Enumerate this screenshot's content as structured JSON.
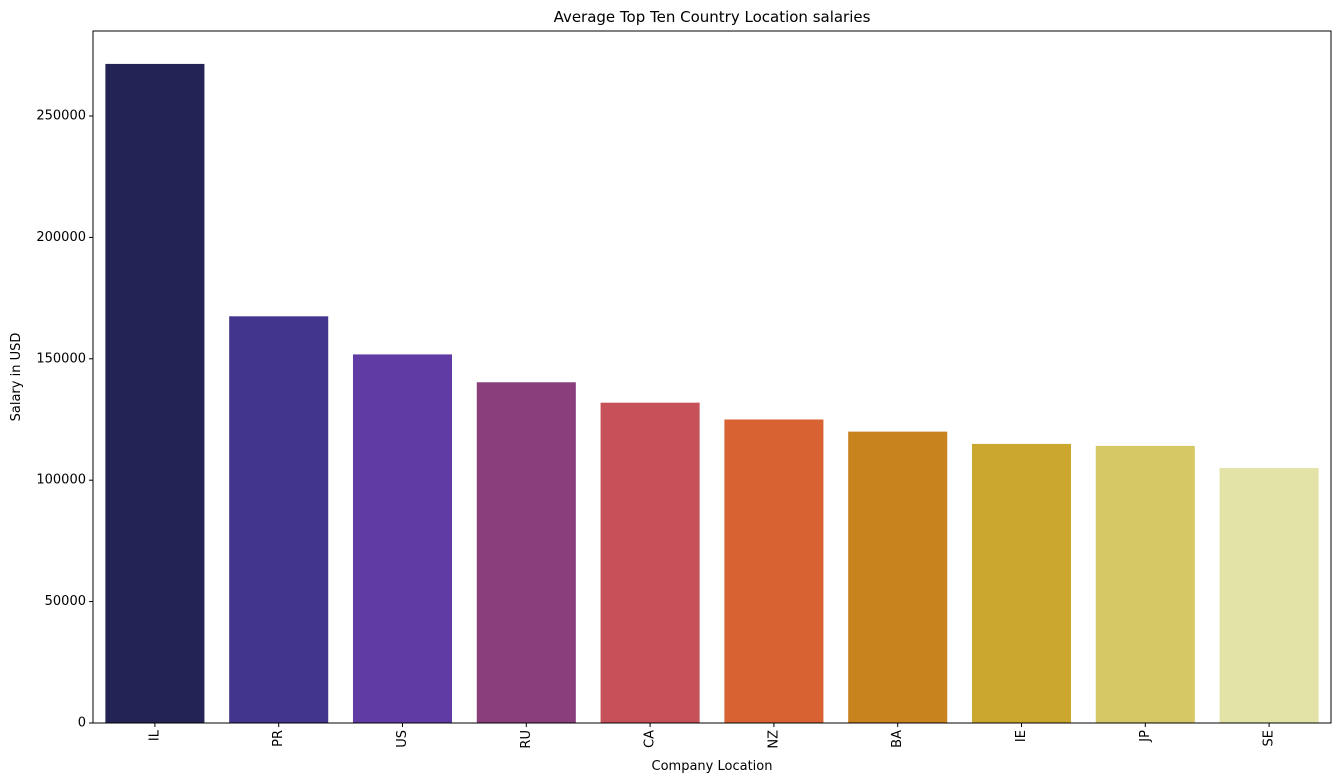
{
  "chart_data": {
    "type": "bar",
    "title": "Average Top Ten Country Location salaries",
    "xlabel": "Company Location",
    "ylabel": "Salary in USD",
    "categories": [
      "IL",
      "PR",
      "US",
      "RU",
      "CA",
      "NZ",
      "BA",
      "IE",
      "JP",
      "SE"
    ],
    "values": [
      271447,
      167500,
      151801,
      140333,
      131918,
      125000,
      120000,
      114944,
      114127,
      105000
    ],
    "colors": [
      "#232355",
      "#42358d",
      "#5f3ba3",
      "#8a3e7c",
      "#c75158",
      "#d96232",
      "#c8821e",
      "#cba730",
      "#d6c965",
      "#e3e3a8"
    ],
    "yticks": [
      0,
      50000,
      100000,
      150000,
      200000,
      250000
    ],
    "ylim": [
      0,
      285000
    ],
    "grid": false,
    "legend": "none",
    "xtick_rotation": "vertical"
  }
}
